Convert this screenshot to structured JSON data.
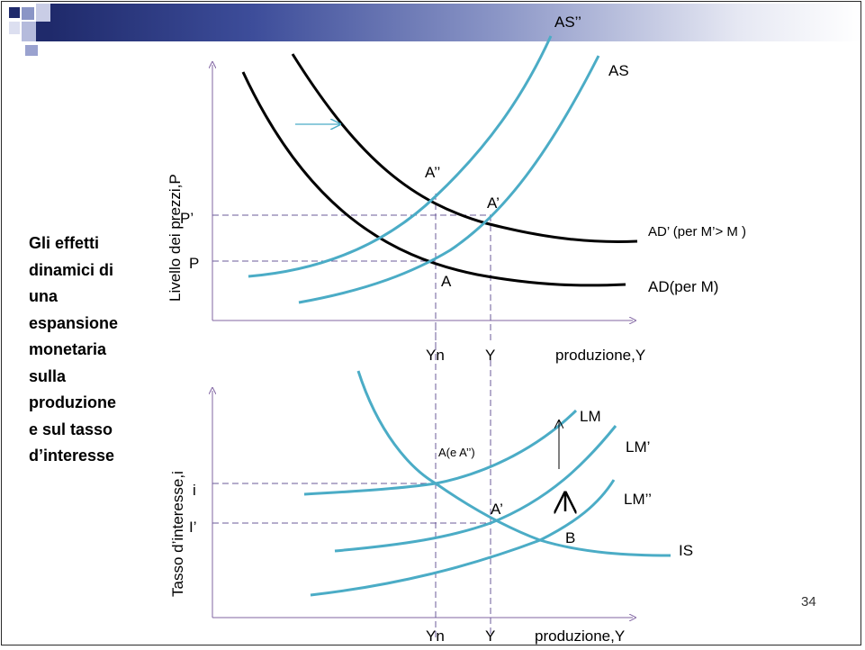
{
  "side_text": "Gli effetti\ndinamici di\nuna\nespansione\nmonetaria\nsulla\nproduzione\ne  sul tasso\nd’interesse",
  "page_number": "34",
  "colors": {
    "curve_teal": "#4bacc6",
    "curve_black": "#000000",
    "axis": "#8064a2",
    "guide": "#6b5b9a",
    "header_dark": "#1f2a6b"
  },
  "top_graph": {
    "y_axis_label": "Livello dei prezzi,P",
    "x_axis_label": "produzione,Y",
    "x_ticks": [
      "Yn",
      "Y"
    ],
    "y_ticks": [
      "P’",
      "P"
    ],
    "curves": [
      "AS’’",
      "AS",
      "AD’ (per M’> M )",
      "AD(per M)"
    ],
    "points": [
      "A’’",
      "A’",
      "A"
    ]
  },
  "bottom_graph": {
    "y_axis_label": "Tasso d’interesse,i",
    "x_axis_label": "produzione,Y",
    "x_ticks": [
      "Yn",
      "Y"
    ],
    "y_ticks": [
      "i",
      "I’"
    ],
    "curves": [
      "LM",
      "LM’",
      "LM’’",
      "IS"
    ],
    "points": [
      "A(e A’’)",
      "A’",
      "B"
    ]
  }
}
